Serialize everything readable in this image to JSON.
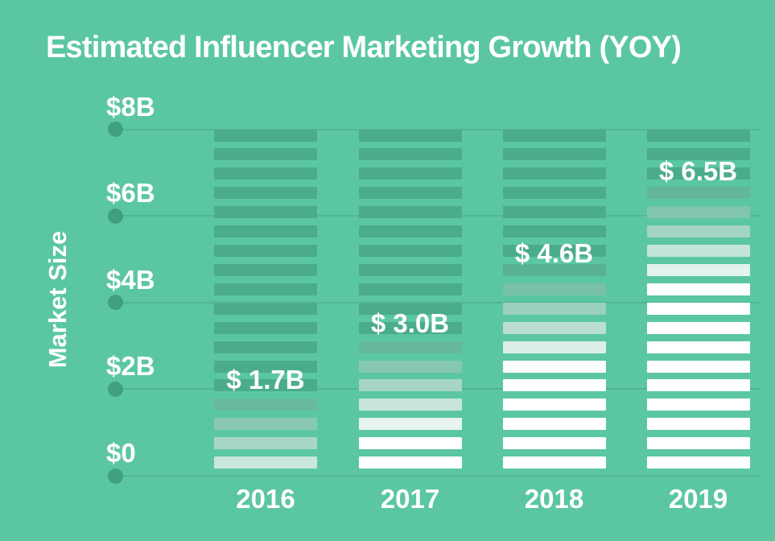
{
  "colors": {
    "background": "#5BC7A1",
    "stripe_dark": "#4BAC8A",
    "stripe_white": "#FFFFFF",
    "gridline": "#47A789",
    "gridline_dot": "#3FA081",
    "text": "#FFFFFF"
  },
  "chart_data": {
    "type": "bar",
    "title": "Estimated Influencer Marketing Growth (YOY)",
    "ylabel": "Market Size",
    "xlabel": "",
    "categories": [
      "2016",
      "2017",
      "2018",
      "2019"
    ],
    "values": [
      1.7,
      3.0,
      4.6,
      6.5
    ],
    "bar_labels": [
      "$ 1.7B",
      "$ 3.0B",
      "$ 4.6B",
      "$ 6.5B"
    ],
    "ylim": [
      0,
      8
    ],
    "yticks": [
      {
        "value": 8,
        "label": "$8B"
      },
      {
        "value": 6,
        "label": "$6B"
      },
      {
        "value": 4,
        "label": "$4B"
      },
      {
        "value": 2,
        "label": "$2B"
      },
      {
        "value": 0,
        "label": "$0"
      }
    ],
    "grid": "horizontal gridlines with left end-dot",
    "legend": "none",
    "bar_style": "18 horizontal stripes per column; dark green above the value level fading to white below it"
  }
}
